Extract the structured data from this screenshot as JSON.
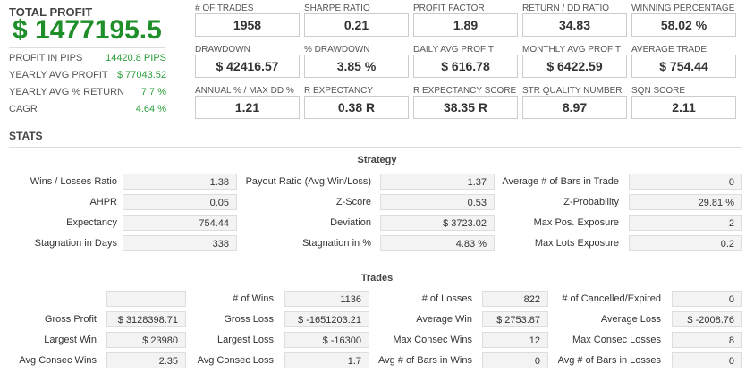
{
  "total_profit": {
    "label": "TOTAL PROFIT",
    "value": "$ 1477195.5"
  },
  "summary": [
    {
      "label": "PROFIT IN PIPS",
      "value": "14420.8 PIPS"
    },
    {
      "label": "YEARLY AVG PROFIT",
      "value": "$ 77043.52"
    },
    {
      "label": "YEARLY AVG % RETURN",
      "value": "7.7 %"
    },
    {
      "label": "CAGR",
      "value": "4.64 %"
    }
  ],
  "cards": [
    {
      "label": "# OF TRADES",
      "value": "1958"
    },
    {
      "label": "SHARPE RATIO",
      "value": "0.21"
    },
    {
      "label": "PROFIT FACTOR",
      "value": "1.89"
    },
    {
      "label": "RETURN / DD RATIO",
      "value": "34.83"
    },
    {
      "label": "WINNING PERCENTAGE",
      "value": "58.02 %"
    },
    {
      "label": "DRAWDOWN",
      "value": "$ 42416.57"
    },
    {
      "label": "% DRAWDOWN",
      "value": "3.85 %"
    },
    {
      "label": "DAILY AVG PROFIT",
      "value": "$ 616.78"
    },
    {
      "label": "MONTHLY AVG PROFIT",
      "value": "$ 6422.59"
    },
    {
      "label": "AVERAGE TRADE",
      "value": "$ 754.44"
    },
    {
      "label": "ANNUAL % / MAX DD %",
      "value": "1.21"
    },
    {
      "label": "R EXPECTANCY",
      "value": "0.38 R"
    },
    {
      "label": "R EXPECTANCY SCORE",
      "value": "38.35 R"
    },
    {
      "label": "STR QUALITY NUMBER",
      "value": "8.97"
    },
    {
      "label": "SQN SCORE",
      "value": "2.11"
    }
  ],
  "stats_title": "STATS",
  "strategy": {
    "title": "Strategy",
    "rows": [
      [
        {
          "label": "Wins / Losses Ratio",
          "value": "1.38"
        },
        {
          "label": "Payout Ratio (Avg Win/Loss)",
          "value": "1.37"
        },
        {
          "label": "Average # of Bars in Trade",
          "value": "0"
        }
      ],
      [
        {
          "label": "AHPR",
          "value": "0.05"
        },
        {
          "label": "Z-Score",
          "value": "0.53"
        },
        {
          "label": "Z-Probability",
          "value": "29.81 %"
        }
      ],
      [
        {
          "label": "Expectancy",
          "value": "754.44"
        },
        {
          "label": "Deviation",
          "value": "$ 3723.02"
        },
        {
          "label": "Max Pos. Exposure",
          "value": "2"
        }
      ],
      [
        {
          "label": "Stagnation in Days",
          "value": "338"
        },
        {
          "label": "Stagnation in %",
          "value": "4.83 %"
        },
        {
          "label": "Max Lots Exposure",
          "value": "0.2"
        }
      ]
    ]
  },
  "trades": {
    "title": "Trades",
    "rows": [
      [
        {
          "label": "",
          "value": ""
        },
        {
          "label": "# of Wins",
          "value": "1136"
        },
        {
          "label": "# of Losses",
          "value": "822"
        },
        {
          "label": "# of Cancelled/Expired",
          "value": "0"
        }
      ],
      [
        {
          "label": "Gross Profit",
          "value": "$ 3128398.71"
        },
        {
          "label": "Gross Loss",
          "value": "$ -1651203.21"
        },
        {
          "label": "Average Win",
          "value": "$ 2753.87"
        },
        {
          "label": "Average Loss",
          "value": "$ -2008.76"
        }
      ],
      [
        {
          "label": "Largest Win",
          "value": "$ 23980"
        },
        {
          "label": "Largest Loss",
          "value": "$ -16300"
        },
        {
          "label": "Max Consec Wins",
          "value": "12"
        },
        {
          "label": "Max Consec Losses",
          "value": "8"
        }
      ],
      [
        {
          "label": "Avg Consec Wins",
          "value": "2.35"
        },
        {
          "label": "Avg Consec Loss",
          "value": "1.7"
        },
        {
          "label": "Avg # of Bars in Wins",
          "value": "0"
        },
        {
          "label": "Avg # of Bars in Losses",
          "value": "0"
        }
      ]
    ]
  }
}
